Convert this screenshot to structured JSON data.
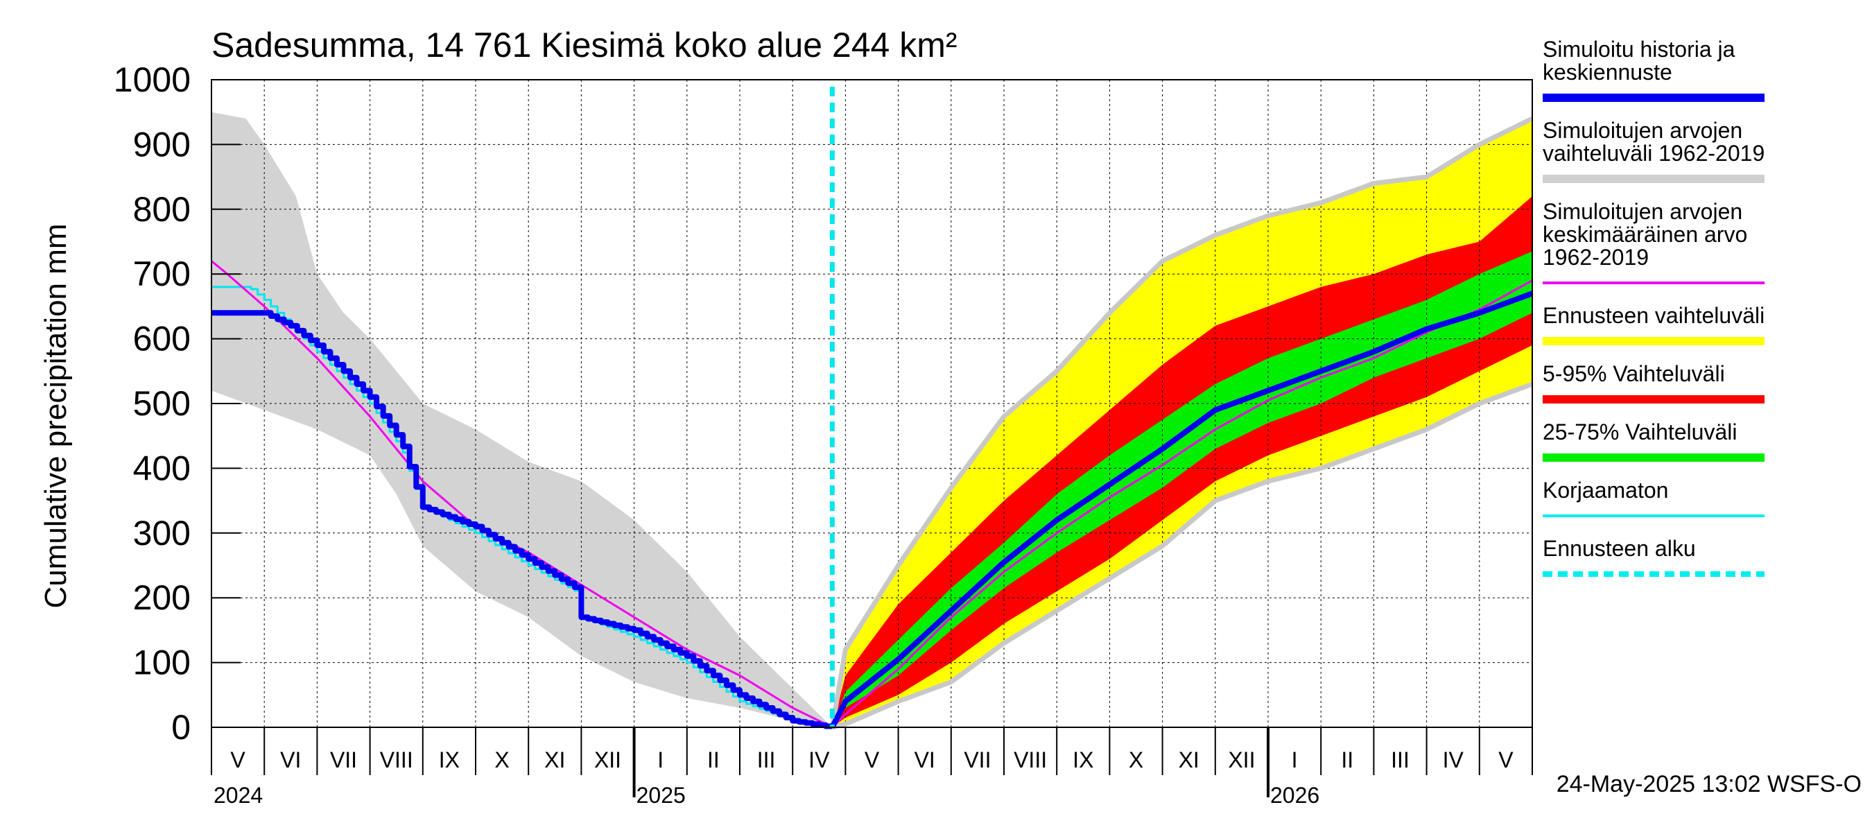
{
  "chart_data": {
    "type": "area",
    "title": "Sadesumma, 14 761 Kiesimä koko alue 244 km²",
    "ylabel": "Cumulative precipitation   mm",
    "ylim": [
      0,
      1000
    ],
    "yticks": [
      0,
      100,
      200,
      300,
      400,
      500,
      600,
      700,
      800,
      900,
      1000
    ],
    "x_start": "2024-05-01",
    "x_end": "2026-05-31",
    "months": [
      "V",
      "VI",
      "VII",
      "VIII",
      "IX",
      "X",
      "XI",
      "XII",
      "I",
      "II",
      "III",
      "IV",
      "V",
      "VI",
      "VII",
      "VIII",
      "IX",
      "X",
      "XI",
      "XII",
      "I",
      "II",
      "III",
      "IV",
      "V"
    ],
    "years": [
      "2024",
      "2025",
      "2026"
    ],
    "forecast_start": "2025-05-24",
    "timestamp": "24-May-2025 13:02 WSFS-O",
    "legend": [
      {
        "label": "Simuloitu historia ja keskiennuste",
        "color": "#0000ee",
        "style": "thick"
      },
      {
        "label": "Simuloitujen arvojen vaihteluväli 1962-2019",
        "color": "#d0d0d0",
        "style": "thick"
      },
      {
        "label": "Simuloitujen arvojen keskimääräinen arvo 1962-2019",
        "color": "#ee00ee",
        "style": "thin"
      },
      {
        "label": "Ennusteen vaihteluväli",
        "color": "#ffff00",
        "style": "thick"
      },
      {
        "label": "5-95% Vaihteluväli",
        "color": "#ff0000",
        "style": "thick"
      },
      {
        "label": "25-75% Vaihteluväli",
        "color": "#00ee00",
        "style": "thick"
      },
      {
        "label": "Korjaamaton",
        "color": "#00eeee",
        "style": "thin"
      },
      {
        "label": "Ennusteen alku",
        "color": "#00eeee",
        "style": "dashed"
      }
    ],
    "series": {
      "hist_range_upper": {
        "x": [
          0,
          0.65,
          1,
          1.6,
          2,
          2.5,
          3,
          3.6,
          4,
          5,
          6,
          7,
          8,
          9,
          10,
          11,
          11.75
        ],
        "y": [
          950,
          940,
          900,
          820,
          700,
          640,
          600,
          540,
          500,
          460,
          410,
          380,
          320,
          240,
          140,
          60,
          0
        ]
      },
      "hist_range_lower": {
        "x": [
          0,
          1,
          2,
          3,
          3.5,
          4,
          5,
          6,
          7,
          8,
          9,
          10,
          11,
          11.75
        ],
        "y": [
          520,
          490,
          460,
          420,
          360,
          280,
          210,
          170,
          110,
          70,
          45,
          30,
          10,
          0
        ]
      },
      "mean_1962_2019": {
        "x": [
          0,
          0.3,
          1,
          2,
          3,
          4,
          5,
          6,
          7,
          8,
          9,
          9.5,
          10,
          11,
          11.75,
          12,
          13,
          14,
          15,
          16,
          17,
          18,
          19,
          20,
          21,
          22,
          23,
          24,
          25
        ],
        "y": [
          720,
          700,
          650,
          570,
          480,
          380,
          310,
          270,
          220,
          170,
          120,
          100,
          80,
          30,
          0,
          20,
          90,
          170,
          240,
          300,
          355,
          405,
          460,
          505,
          540,
          570,
          610,
          645,
          690
        ]
      },
      "korjaamaton": {
        "x": [
          0,
          0.7,
          1,
          2,
          2.5,
          3,
          3.6,
          4,
          5,
          6,
          6.9,
          7,
          8,
          9,
          9.5,
          10,
          10.5,
          11,
          11.75
        ],
        "y": [
          680,
          680,
          660,
          580,
          540,
          500,
          430,
          340,
          300,
          250,
          210,
          170,
          140,
          100,
          70,
          40,
          25,
          10,
          0
        ]
      },
      "history": {
        "x": [
          0,
          1,
          1.5,
          2,
          2.5,
          3,
          3.6,
          4,
          5,
          6,
          6.9,
          7,
          8,
          9,
          9.5,
          10,
          10.5,
          11,
          11.75
        ],
        "y": [
          640,
          640,
          620,
          590,
          550,
          510,
          440,
          340,
          310,
          260,
          215,
          170,
          150,
          110,
          80,
          50,
          30,
          10,
          0
        ]
      },
      "forecast_median": {
        "x": [
          11.75,
          12,
          13,
          14,
          15,
          16,
          17,
          18,
          19,
          20,
          21,
          22,
          23,
          24,
          25
        ],
        "y": [
          0,
          40,
          105,
          180,
          255,
          320,
          375,
          430,
          490,
          520,
          550,
          580,
          615,
          640,
          670
        ]
      },
      "forecast_p25": {
        "x": [
          11.75,
          12,
          13,
          14,
          15,
          16,
          17,
          18,
          19,
          20,
          21,
          22,
          23,
          24,
          25
        ],
        "y": [
          0,
          30,
          80,
          150,
          215,
          270,
          320,
          370,
          430,
          470,
          500,
          540,
          570,
          600,
          640
        ]
      },
      "forecast_p75": {
        "x": [
          11.75,
          12,
          13,
          14,
          15,
          16,
          17,
          18,
          19,
          20,
          21,
          22,
          23,
          24,
          25
        ],
        "y": [
          0,
          55,
          135,
          215,
          285,
          360,
          420,
          475,
          530,
          570,
          600,
          630,
          660,
          700,
          735
        ]
      },
      "forecast_p05": {
        "x": [
          11.75,
          12,
          13,
          14,
          15,
          16,
          17,
          18,
          19,
          20,
          21,
          22,
          23,
          24,
          25
        ],
        "y": [
          0,
          15,
          50,
          100,
          160,
          210,
          260,
          320,
          380,
          420,
          450,
          480,
          510,
          550,
          590
        ]
      },
      "forecast_p95": {
        "x": [
          11.75,
          12,
          13,
          14,
          15,
          16,
          17,
          18,
          19,
          20,
          21,
          22,
          23,
          24,
          25
        ],
        "y": [
          0,
          80,
          190,
          270,
          350,
          420,
          490,
          560,
          620,
          650,
          680,
          700,
          730,
          750,
          820
        ]
      },
      "forecast_min": {
        "x": [
          11.75,
          12,
          13,
          14,
          15,
          16,
          17,
          18,
          19,
          20,
          21,
          22,
          23,
          24,
          25
        ],
        "y": [
          0,
          5,
          40,
          70,
          130,
          180,
          230,
          280,
          350,
          380,
          400,
          430,
          460,
          500,
          530
        ]
      },
      "forecast_max": {
        "x": [
          11.75,
          12,
          13,
          14,
          15,
          16,
          17,
          18,
          19,
          20,
          21,
          22,
          23,
          24,
          25
        ],
        "y": [
          0,
          120,
          250,
          370,
          480,
          550,
          640,
          720,
          760,
          790,
          810,
          840,
          850,
          900,
          940
        ]
      }
    }
  }
}
